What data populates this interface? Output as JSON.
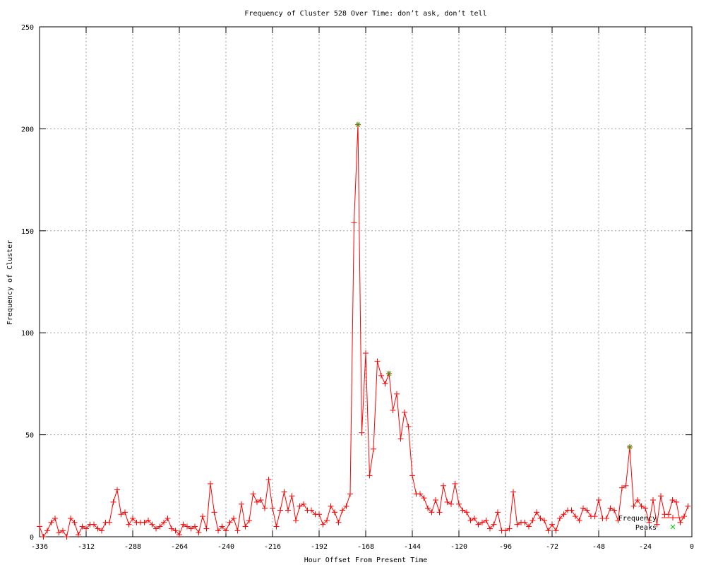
{
  "chart_data": {
    "type": "line",
    "title": "Frequency of Cluster 528 Over Time: don’t ask, don’t tell",
    "xlabel": "Hour Offset From Present Time",
    "ylabel": "Frequency of Cluster",
    "xlim": [
      -336,
      0
    ],
    "ylim": [
      0,
      250
    ],
    "xticks": [
      -336,
      -312,
      -288,
      -264,
      -240,
      -216,
      -192,
      -168,
      -144,
      -120,
      -96,
      -72,
      -48,
      -24,
      0
    ],
    "yticks": [
      0,
      50,
      100,
      150,
      200,
      250
    ],
    "grid": true,
    "legend_position": "bottom-right",
    "series": [
      {
        "name": "Frequency",
        "color": "#ff0000",
        "marker": "plus",
        "x": [
          -336,
          -334,
          -332,
          -330,
          -328,
          -326,
          -324,
          -322,
          -320,
          -318,
          -316,
          -314,
          -312,
          -310,
          -308,
          -306,
          -304,
          -302,
          -300,
          -298,
          -296,
          -294,
          -292,
          -290,
          -288,
          -286,
          -284,
          -282,
          -280,
          -278,
          -276,
          -274,
          -272,
          -270,
          -268,
          -266,
          -264,
          -262,
          -260,
          -258,
          -256,
          -254,
          -252,
          -250,
          -248,
          -246,
          -244,
          -242,
          -240,
          -238,
          -236,
          -234,
          -232,
          -230,
          -228,
          -226,
          -224,
          -222,
          -220,
          -218,
          -216,
          -214,
          -212,
          -210,
          -208,
          -206,
          -204,
          -202,
          -200,
          -198,
          -196,
          -194,
          -192,
          -190,
          -188,
          -186,
          -184,
          -182,
          -180,
          -178,
          -176,
          -174,
          -172,
          -170,
          -168,
          -166,
          -164,
          -162,
          -160,
          -158,
          -156,
          -154,
          -152,
          -150,
          -148,
          -146,
          -144,
          -142,
          -140,
          -138,
          -136,
          -134,
          -132,
          -130,
          -128,
          -126,
          -124,
          -122,
          -120,
          -118,
          -116,
          -114,
          -112,
          -110,
          -108,
          -106,
          -104,
          -102,
          -100,
          -98,
          -96,
          -94,
          -92,
          -90,
          -88,
          -86,
          -84,
          -82,
          -80,
          -78,
          -76,
          -74,
          -72,
          -70,
          -68,
          -66,
          -64,
          -62,
          -60,
          -58,
          -56,
          -54,
          -52,
          -50,
          -48,
          -46,
          -44,
          -42,
          -40,
          -38,
          -36,
          -34,
          -32,
          -30,
          -28,
          -26,
          -24,
          -22,
          -20,
          -18,
          -16,
          -14,
          -12,
          -10,
          -8,
          -6,
          -4,
          -2
        ],
        "y": [
          5,
          0,
          3,
          7,
          9,
          2,
          3,
          0,
          9,
          7,
          1,
          5,
          4,
          6,
          6,
          4,
          3,
          7,
          7,
          17,
          23,
          11,
          12,
          6,
          9,
          7,
          7,
          7,
          8,
          6,
          4,
          5,
          7,
          9,
          4,
          3,
          1,
          6,
          5,
          4,
          5,
          2,
          10,
          4,
          26,
          12,
          3,
          5,
          3,
          7,
          9,
          3,
          16,
          5,
          8,
          21,
          17,
          18,
          14,
          28,
          14,
          5,
          13,
          22,
          13,
          20,
          8,
          15,
          16,
          13,
          13,
          11,
          11,
          6,
          8,
          15,
          12,
          7,
          13,
          15,
          21,
          154,
          202,
          51,
          90,
          30,
          43,
          86,
          79,
          75,
          80,
          62,
          70,
          48,
          61,
          54,
          30,
          21,
          21,
          19,
          14,
          12,
          18,
          12,
          25,
          17,
          16,
          26,
          16,
          13,
          12,
          8,
          9,
          6,
          7,
          8,
          4,
          6,
          12,
          3,
          3,
          4,
          22,
          6,
          7,
          7,
          5,
          8,
          12,
          9,
          8,
          3,
          6,
          3,
          9,
          11,
          13,
          13,
          10,
          8,
          14,
          13,
          10,
          10,
          18,
          9,
          9,
          14,
          13,
          8,
          24,
          25,
          44,
          15,
          18,
          15,
          14,
          7,
          18,
          6,
          20,
          11,
          11,
          18,
          17,
          7,
          10,
          15
        ]
      },
      {
        "name": "Peaks",
        "color": "#00c000",
        "marker": "x",
        "x": [
          -172,
          -156,
          -32
        ],
        "y": [
          202,
          80,
          44
        ]
      }
    ]
  }
}
